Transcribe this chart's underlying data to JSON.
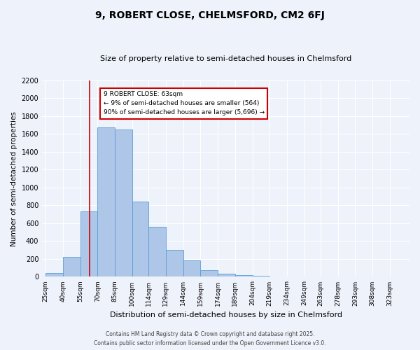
{
  "title": "9, ROBERT CLOSE, CHELMSFORD, CM2 6FJ",
  "subtitle": "Size of property relative to semi-detached houses in Chelmsford",
  "xlabel": "Distribution of semi-detached houses by size in Chelmsford",
  "ylabel": "Number of semi-detached properties",
  "bin_labels": [
    "25sqm",
    "40sqm",
    "55sqm",
    "70sqm",
    "85sqm",
    "100sqm",
    "114sqm",
    "129sqm",
    "144sqm",
    "159sqm",
    "174sqm",
    "189sqm",
    "204sqm",
    "219sqm",
    "234sqm",
    "249sqm",
    "263sqm",
    "278sqm",
    "293sqm",
    "308sqm",
    "323sqm"
  ],
  "bin_edges": [
    25,
    40,
    55,
    70,
    85,
    100,
    114,
    129,
    144,
    159,
    174,
    189,
    204,
    219,
    234,
    249,
    263,
    278,
    293,
    308,
    323,
    338
  ],
  "bar_heights": [
    40,
    220,
    730,
    1670,
    1650,
    840,
    560,
    300,
    180,
    75,
    35,
    20,
    10,
    5,
    2,
    1,
    0,
    0,
    0,
    0,
    0
  ],
  "bar_color": "#aec6e8",
  "bar_edge_color": "#5a9fd4",
  "property_size": 63,
  "vline_color": "#cc0000",
  "annotation_title": "9 ROBERT CLOSE: 63sqm",
  "annotation_line1": "← 9% of semi-detached houses are smaller (564)",
  "annotation_line2": "90% of semi-detached houses are larger (5,696) →",
  "annotation_box_color": "#ffffff",
  "annotation_box_edge": "#cc0000",
  "ylim": [
    0,
    2200
  ],
  "yticks": [
    0,
    200,
    400,
    600,
    800,
    1000,
    1200,
    1400,
    1600,
    1800,
    2000,
    2200
  ],
  "background_color": "#eef2fb",
  "grid_color": "#ffffff",
  "footer_line1": "Contains HM Land Registry data © Crown copyright and database right 2025.",
  "footer_line2": "Contains public sector information licensed under the Open Government Licence v3.0."
}
